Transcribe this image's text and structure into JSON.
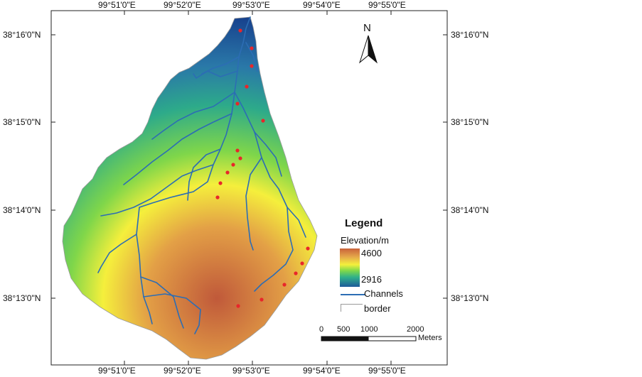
{
  "map": {
    "ticks_top": [
      "99°51'0\"E",
      "99°52'0\"E",
      "99°53'0\"E",
      "99°54'0\"E",
      "99°55'0\"E"
    ],
    "ticks_bottom": [
      "99°51'0\"E",
      "99°52'0\"E",
      "99°53'0\"E",
      "99°54'0\"E",
      "99°55'0\"E"
    ],
    "ticks_left": [
      "38°16'0\"N",
      "38°15'0\"N",
      "38°14'0\"N",
      "38°13'0\"N"
    ],
    "ticks_right": [
      "38°16'0\"N",
      "38°15'0\"N",
      "38°14'0\"N",
      "38°13'0\"N"
    ],
    "north_arrow_label": "N",
    "legend": {
      "title": "Legend",
      "elevation_title": "Elevation/m",
      "high_value": "4600",
      "low_value": "2916",
      "channels_label": "Channels",
      "border_label": "border"
    },
    "scale_bar": {
      "labels": [
        "0",
        "500",
        "1000",
        "2000"
      ],
      "units": "Meters"
    },
    "colors": {
      "high": "#c9623a",
      "mid_high": "#f4f03c",
      "mid_low": "#2fb08a",
      "low": "#1d5a9a",
      "channel": "#2c6db4",
      "sample_point": "#e8262a"
    }
  }
}
